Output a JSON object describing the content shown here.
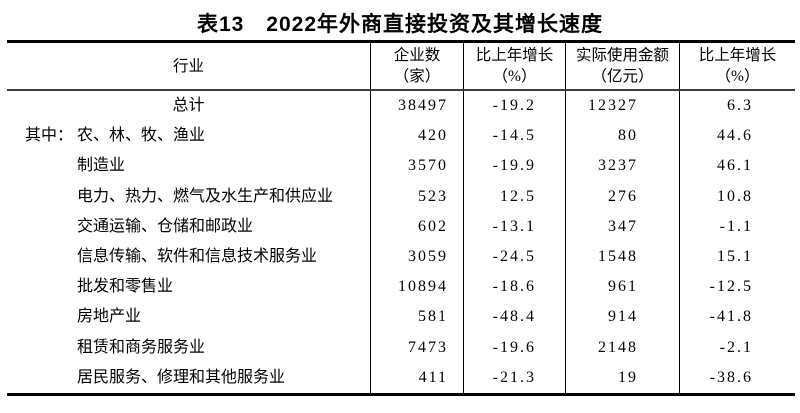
{
  "page": {
    "title": "表13　2022年外商直接投资及其增长速度"
  },
  "table": {
    "columns": {
      "industry": "行业",
      "enterprises": [
        "企业数",
        "（家）"
      ],
      "enterprises_growth": [
        "比上年增长",
        "（%）"
      ],
      "amount": [
        "实际使用金额",
        "（亿元）"
      ],
      "amount_growth": [
        "比上年增长",
        "（%）"
      ]
    },
    "rows": [
      {
        "prefix": "",
        "industry": "总计",
        "enterprises": "38497",
        "enterprises_growth": "-19.2",
        "amount": "12327",
        "amount_growth": "6.3"
      },
      {
        "prefix": "其中：",
        "industry": "农、林、牧、渔业",
        "enterprises": "420",
        "enterprises_growth": "-14.5",
        "amount": "80",
        "amount_growth": "44.6"
      },
      {
        "prefix": "",
        "industry": "制造业",
        "enterprises": "3570",
        "enterprises_growth": "-19.9",
        "amount": "3237",
        "amount_growth": "46.1"
      },
      {
        "prefix": "",
        "industry": "电力、热力、燃气及水生产和供应业",
        "enterprises": "523",
        "enterprises_growth": "12.5",
        "amount": "276",
        "amount_growth": "10.8"
      },
      {
        "prefix": "",
        "industry": "交通运输、仓储和邮政业",
        "enterprises": "602",
        "enterprises_growth": "-13.1",
        "amount": "347",
        "amount_growth": "-1.1"
      },
      {
        "prefix": "",
        "industry": "信息传输、软件和信息技术服务业",
        "enterprises": "3059",
        "enterprises_growth": "-24.5",
        "amount": "1548",
        "amount_growth": "15.1"
      },
      {
        "prefix": "",
        "industry": "批发和零售业",
        "enterprises": "10894",
        "enterprises_growth": "-18.6",
        "amount": "961",
        "amount_growth": "-12.5"
      },
      {
        "prefix": "",
        "industry": "房地产业",
        "enterprises": "581",
        "enterprises_growth": "-48.4",
        "amount": "914",
        "amount_growth": "-41.8"
      },
      {
        "prefix": "",
        "industry": "租赁和商务服务业",
        "enterprises": "7473",
        "enterprises_growth": "-19.6",
        "amount": "2148",
        "amount_growth": "-2.1"
      },
      {
        "prefix": "",
        "industry": "居民服务、修理和其他服务业",
        "enterprises": "411",
        "enterprises_growth": "-21.3",
        "amount": "19",
        "amount_growth": "-38.6"
      }
    ]
  },
  "chart_data": {
    "type": "table",
    "title": "表13　2022年外商直接投资及其增长速度",
    "columns": [
      "行业",
      "企业数（家）",
      "比上年增长（%）",
      "实际使用金额（亿元）",
      "比上年增长（%）"
    ],
    "rows": [
      [
        "总计",
        38497,
        -19.2,
        12327,
        6.3
      ],
      [
        "其中：农、林、牧、渔业",
        420,
        -14.5,
        80,
        44.6
      ],
      [
        "制造业",
        3570,
        -19.9,
        3237,
        46.1
      ],
      [
        "电力、热力、燃气及水生产和供应业",
        523,
        12.5,
        276,
        10.8
      ],
      [
        "交通运输、仓储和邮政业",
        602,
        -13.1,
        347,
        -1.1
      ],
      [
        "信息传输、软件和信息技术服务业",
        3059,
        -24.5,
        1548,
        15.1
      ],
      [
        "批发和零售业",
        10894,
        -18.6,
        961,
        -12.5
      ],
      [
        "房地产业",
        581,
        -48.4,
        914,
        -41.8
      ],
      [
        "租赁和商务服务业",
        7473,
        -19.6,
        2148,
        -2.1
      ],
      [
        "居民服务、修理和其他服务业",
        411,
        -21.3,
        19,
        -38.6
      ]
    ]
  }
}
